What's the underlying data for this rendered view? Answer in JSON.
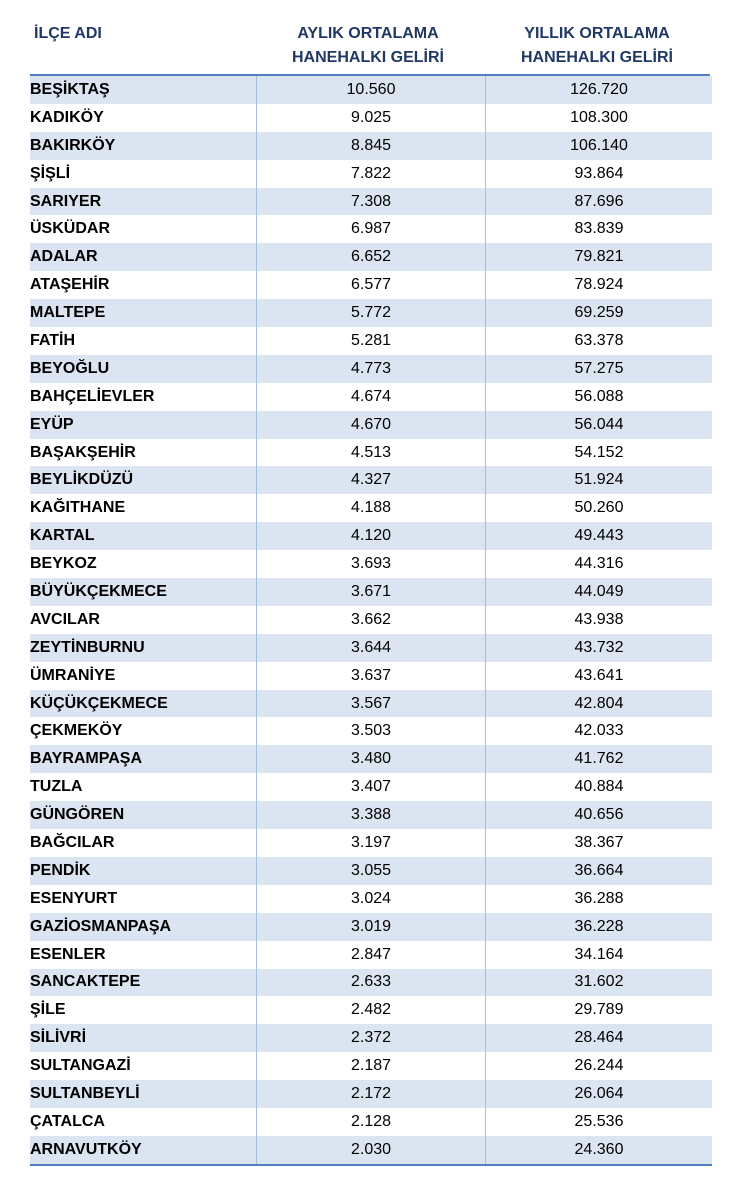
{
  "headers": {
    "district": "İLÇE ADI",
    "monthly_line1": "AYLIK ORTALAMA",
    "monthly_line2": "HANEHALKI GELİRİ",
    "yearly_line1": "YILLIK ORTALAMA",
    "yearly_line2": "HANEHALKI GELİRİ"
  },
  "rows": [
    {
      "name": "BEŞİKTAŞ",
      "monthly": "10.560",
      "yearly": "126.720"
    },
    {
      "name": "KADIKÖY",
      "monthly": "9.025",
      "yearly": "108.300"
    },
    {
      "name": "BAKIRKÖY",
      "monthly": "8.845",
      "yearly": "106.140"
    },
    {
      "name": "ŞİŞLİ",
      "monthly": "7.822",
      "yearly": "93.864"
    },
    {
      "name": "SARIYER",
      "monthly": "7.308",
      "yearly": "87.696"
    },
    {
      "name": "ÜSKÜDAR",
      "monthly": "6.987",
      "yearly": "83.839"
    },
    {
      "name": "ADALAR",
      "monthly": "6.652",
      "yearly": "79.821"
    },
    {
      "name": "ATAŞEHİR",
      "monthly": "6.577",
      "yearly": "78.924"
    },
    {
      "name": "MALTEPE",
      "monthly": "5.772",
      "yearly": "69.259"
    },
    {
      "name": "FATİH",
      "monthly": "5.281",
      "yearly": "63.378"
    },
    {
      "name": "BEYOĞLU",
      "monthly": "4.773",
      "yearly": "57.275"
    },
    {
      "name": "BAHÇELİEVLER",
      "monthly": "4.674",
      "yearly": "56.088"
    },
    {
      "name": "EYÜP",
      "monthly": "4.670",
      "yearly": "56.044"
    },
    {
      "name": "BAŞAKŞEHİR",
      "monthly": "4.513",
      "yearly": "54.152"
    },
    {
      "name": "BEYLİKDÜZÜ",
      "monthly": "4.327",
      "yearly": "51.924"
    },
    {
      "name": "KAĞITHANE",
      "monthly": "4.188",
      "yearly": "50.260"
    },
    {
      "name": "KARTAL",
      "monthly": "4.120",
      "yearly": "49.443"
    },
    {
      "name": "BEYKOZ",
      "monthly": "3.693",
      "yearly": "44.316"
    },
    {
      "name": "BÜYÜKÇEKMECE",
      "monthly": "3.671",
      "yearly": "44.049"
    },
    {
      "name": "AVCILAR",
      "monthly": "3.662",
      "yearly": "43.938"
    },
    {
      "name": "ZEYTİNBURNU",
      "monthly": "3.644",
      "yearly": "43.732"
    },
    {
      "name": "ÜMRANİYE",
      "monthly": "3.637",
      "yearly": "43.641"
    },
    {
      "name": "KÜÇÜKÇEKMECE",
      "monthly": "3.567",
      "yearly": "42.804"
    },
    {
      "name": "ÇEKMEKÖY",
      "monthly": "3.503",
      "yearly": "42.033"
    },
    {
      "name": "BAYRAMPAŞA",
      "monthly": "3.480",
      "yearly": "41.762"
    },
    {
      "name": "TUZLA",
      "monthly": "3.407",
      "yearly": "40.884"
    },
    {
      "name": "GÜNGÖREN",
      "monthly": "3.388",
      "yearly": "40.656"
    },
    {
      "name": "BAĞCILAR",
      "monthly": "3.197",
      "yearly": "38.367"
    },
    {
      "name": "PENDİK",
      "monthly": "3.055",
      "yearly": "36.664"
    },
    {
      "name": "ESENYURT",
      "monthly": "3.024",
      "yearly": "36.288"
    },
    {
      "name": "GAZİOSMANPAŞA",
      "monthly": "3.019",
      "yearly": "36.228"
    },
    {
      "name": "ESENLER",
      "monthly": "2.847",
      "yearly": "34.164"
    },
    {
      "name": "SANCAKTEPE",
      "monthly": "2.633",
      "yearly": "31.602"
    },
    {
      "name": "ŞİLE",
      "monthly": "2.482",
      "yearly": "29.789"
    },
    {
      "name": "SİLİVRİ",
      "monthly": "2.372",
      "yearly": "28.464"
    },
    {
      "name": "SULTANGAZİ",
      "monthly": "2.187",
      "yearly": "26.244"
    },
    {
      "name": "SULTANBEYLİ",
      "monthly": "2.172",
      "yearly": "26.064"
    },
    {
      "name": "ÇATALCA",
      "monthly": "2.128",
      "yearly": "25.536"
    },
    {
      "name": "ARNAVUTKÖY",
      "monthly": "2.030",
      "yearly": "24.360"
    }
  ],
  "colors": {
    "header_text": "#1f3864",
    "stripe": "#dbe5f1",
    "rule": "#4f81bd"
  }
}
